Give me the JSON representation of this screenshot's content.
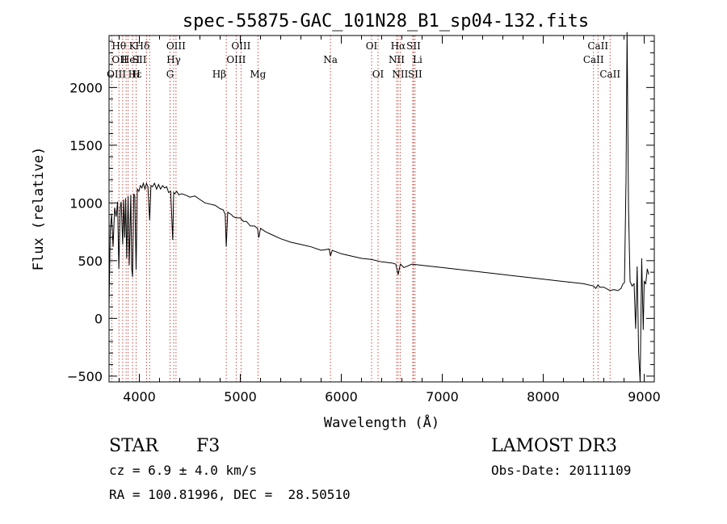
{
  "chart_data": {
    "type": "line",
    "title": "spec-55875-GAC_101N28_B1_sp04-132.fits",
    "xlabel": "Wavelength (Å)",
    "ylabel": "Flux (relative)",
    "xlim": [
      3700,
      9100
    ],
    "ylim": [
      -550,
      2450
    ],
    "xticks": [
      4000,
      5000,
      6000,
      7000,
      8000,
      9000
    ],
    "yticks": [
      -500,
      0,
      500,
      1000,
      1500,
      2000
    ],
    "series": [
      {
        "name": "flux",
        "x": [
          3700,
          3712,
          3725,
          3740,
          3755,
          3770,
          3785,
          3797,
          3810,
          3820,
          3835,
          3845,
          3855,
          3865,
          3875,
          3889,
          3900,
          3915,
          3925,
          3933,
          3945,
          3955,
          3968,
          3980,
          3995,
          4010,
          4025,
          4040,
          4055,
          4070,
          4085,
          4102,
          4115,
          4130,
          4150,
          4170,
          4190,
          4210,
          4230,
          4250,
          4270,
          4290,
          4310,
          4330,
          4340,
          4350,
          4370,
          4390,
          4420,
          4450,
          4480,
          4500,
          4550,
          4600,
          4650,
          4700,
          4750,
          4800,
          4830,
          4850,
          4861,
          4875,
          4890,
          4910,
          4930,
          4960,
          5000,
          5030,
          5060,
          5100,
          5140,
          5170,
          5183,
          5200,
          5250,
          5300,
          5400,
          5500,
          5600,
          5700,
          5800,
          5880,
          5893,
          5910,
          6000,
          6100,
          6200,
          6300,
          6400,
          6500,
          6540,
          6563,
          6585,
          6620,
          6700,
          6800,
          7000,
          7200,
          7400,
          7600,
          7800,
          8000,
          8200,
          8400,
          8498,
          8520,
          8542,
          8560,
          8600,
          8662,
          8700,
          8740,
          8770,
          8790,
          8805,
          8820,
          8830,
          8845,
          8860,
          8880,
          8900,
          8915,
          8930,
          8945,
          8960,
          8975,
          8990,
          9000,
          9015,
          9030,
          9045
        ],
        "y": [
          100,
          760,
          900,
          620,
          960,
          880,
          1010,
          430,
          960,
          1010,
          640,
          1030,
          700,
          1040,
          520,
          1060,
          460,
          1070,
          430,
          360,
          1080,
          1060,
          420,
          1120,
          1100,
          1150,
          1130,
          1170,
          1120,
          1170,
          1140,
          850,
          1150,
          1140,
          1170,
          1120,
          1160,
          1120,
          1150,
          1130,
          1140,
          1090,
          1100,
          680,
          1090,
          1080,
          1100,
          1070,
          1080,
          1070,
          1060,
          1050,
          1060,
          1030,
          1000,
          990,
          980,
          950,
          940,
          900,
          620,
          920,
          910,
          900,
          880,
          870,
          870,
          840,
          840,
          800,
          800,
          780,
          700,
          780,
          750,
          730,
          690,
          660,
          640,
          620,
          590,
          600,
          540,
          590,
          560,
          540,
          520,
          510,
          490,
          480,
          470,
          380,
          470,
          440,
          470,
          460,
          440,
          420,
          400,
          380,
          360,
          340,
          320,
          300,
          280,
          260,
          290,
          270,
          270,
          240,
          250,
          240,
          260,
          300,
          310,
          1200,
          2480,
          950,
          320,
          280,
          300,
          -90,
          450,
          -300,
          -550,
          520,
          -100,
          320,
          300,
          430,
          380
        ]
      }
    ],
    "line_ids": [
      {
        "label": "Hθ",
        "wave": 3798,
        "row": 1,
        "anchor": "middle"
      },
      {
        "label": "OII",
        "wave": 3727,
        "row": 2,
        "anchor": "start"
      },
      {
        "label": "OIII",
        "wave": 3869,
        "row": 3,
        "anchor": "end"
      },
      {
        "label": "Hε",
        "wave": 3889,
        "row": 3,
        "anchor": "start"
      },
      {
        "label": "He",
        "wave": 3889,
        "row": 2,
        "anchor": "middle"
      },
      {
        "label": "K",
        "wave": 3933,
        "row": 1,
        "anchor": "middle"
      },
      {
        "label": "H",
        "wave": 3968,
        "row": 3,
        "anchor": "middle"
      },
      {
        "label": "I",
        "wave": 3968,
        "row": 2,
        "anchor": "start"
      },
      {
        "label": "SII",
        "wave": 4072,
        "row": 2,
        "anchor": "end"
      },
      {
        "label": "Hδ",
        "wave": 4102,
        "row": 1,
        "anchor": "end"
      },
      {
        "label": "OIII",
        "wave": 4363,
        "row": 1,
        "anchor": "middle"
      },
      {
        "label": "Hγ",
        "wave": 4340,
        "row": 2,
        "anchor": "middle"
      },
      {
        "label": "G",
        "wave": 4304,
        "row": 3,
        "anchor": "middle"
      },
      {
        "label": "Hβ",
        "wave": 4861,
        "row": 3,
        "anchor": "end"
      },
      {
        "label": "OIII",
        "wave": 5007,
        "row": 1,
        "anchor": "middle"
      },
      {
        "label": "OIII",
        "wave": 4959,
        "row": 2,
        "anchor": "middle"
      },
      {
        "label": "Mg",
        "wave": 5175,
        "row": 3,
        "anchor": "middle"
      },
      {
        "label": "Na",
        "wave": 5893,
        "row": 2,
        "anchor": "middle"
      },
      {
        "label": "OI",
        "wave": 6300,
        "row": 1,
        "anchor": "middle"
      },
      {
        "label": "OI",
        "wave": 6364,
        "row": 3,
        "anchor": "middle"
      },
      {
        "label": "Hα",
        "wave": 6563,
        "row": 1,
        "anchor": "middle"
      },
      {
        "label": "NII",
        "wave": 6548,
        "row": 2,
        "anchor": "middle"
      },
      {
        "label": "NII",
        "wave": 6583,
        "row": 3,
        "anchor": "middle"
      },
      {
        "label": "SII",
        "wave": 6716,
        "row": 1,
        "anchor": "middle"
      },
      {
        "label": "Li",
        "wave": 6708,
        "row": 2,
        "anchor": "start"
      },
      {
        "label": "SII",
        "wave": 6731,
        "row": 3,
        "anchor": "middle"
      },
      {
        "label": "CaII",
        "wave": 8542,
        "row": 1,
        "anchor": "middle"
      },
      {
        "label": "CaII",
        "wave": 8498,
        "row": 2,
        "anchor": "middle"
      },
      {
        "label": "CaII",
        "wave": 8662,
        "row": 3,
        "anchor": "middle"
      }
    ],
    "line_marks": [
      3727,
      3798,
      3835,
      3869,
      3889,
      3933,
      3968,
      4072,
      4102,
      4304,
      4340,
      4363,
      4861,
      4959,
      5007,
      5175,
      5893,
      6300,
      6364,
      6548,
      6563,
      6583,
      6708,
      6716,
      6731,
      8498,
      8542,
      8662
    ]
  },
  "footer": {
    "object_class": "STAR",
    "subclass": "F3",
    "cz": "cz = 6.9 ± 4.0 km/s",
    "radec": "RA = 100.81996, DEC =  28.50510",
    "survey": "LAMOST DR3",
    "obs_date": "Obs-Date: 20111109"
  },
  "colors": {
    "axis": "#000000",
    "spectrum": "#000000",
    "line_marker": "#c0392b"
  }
}
